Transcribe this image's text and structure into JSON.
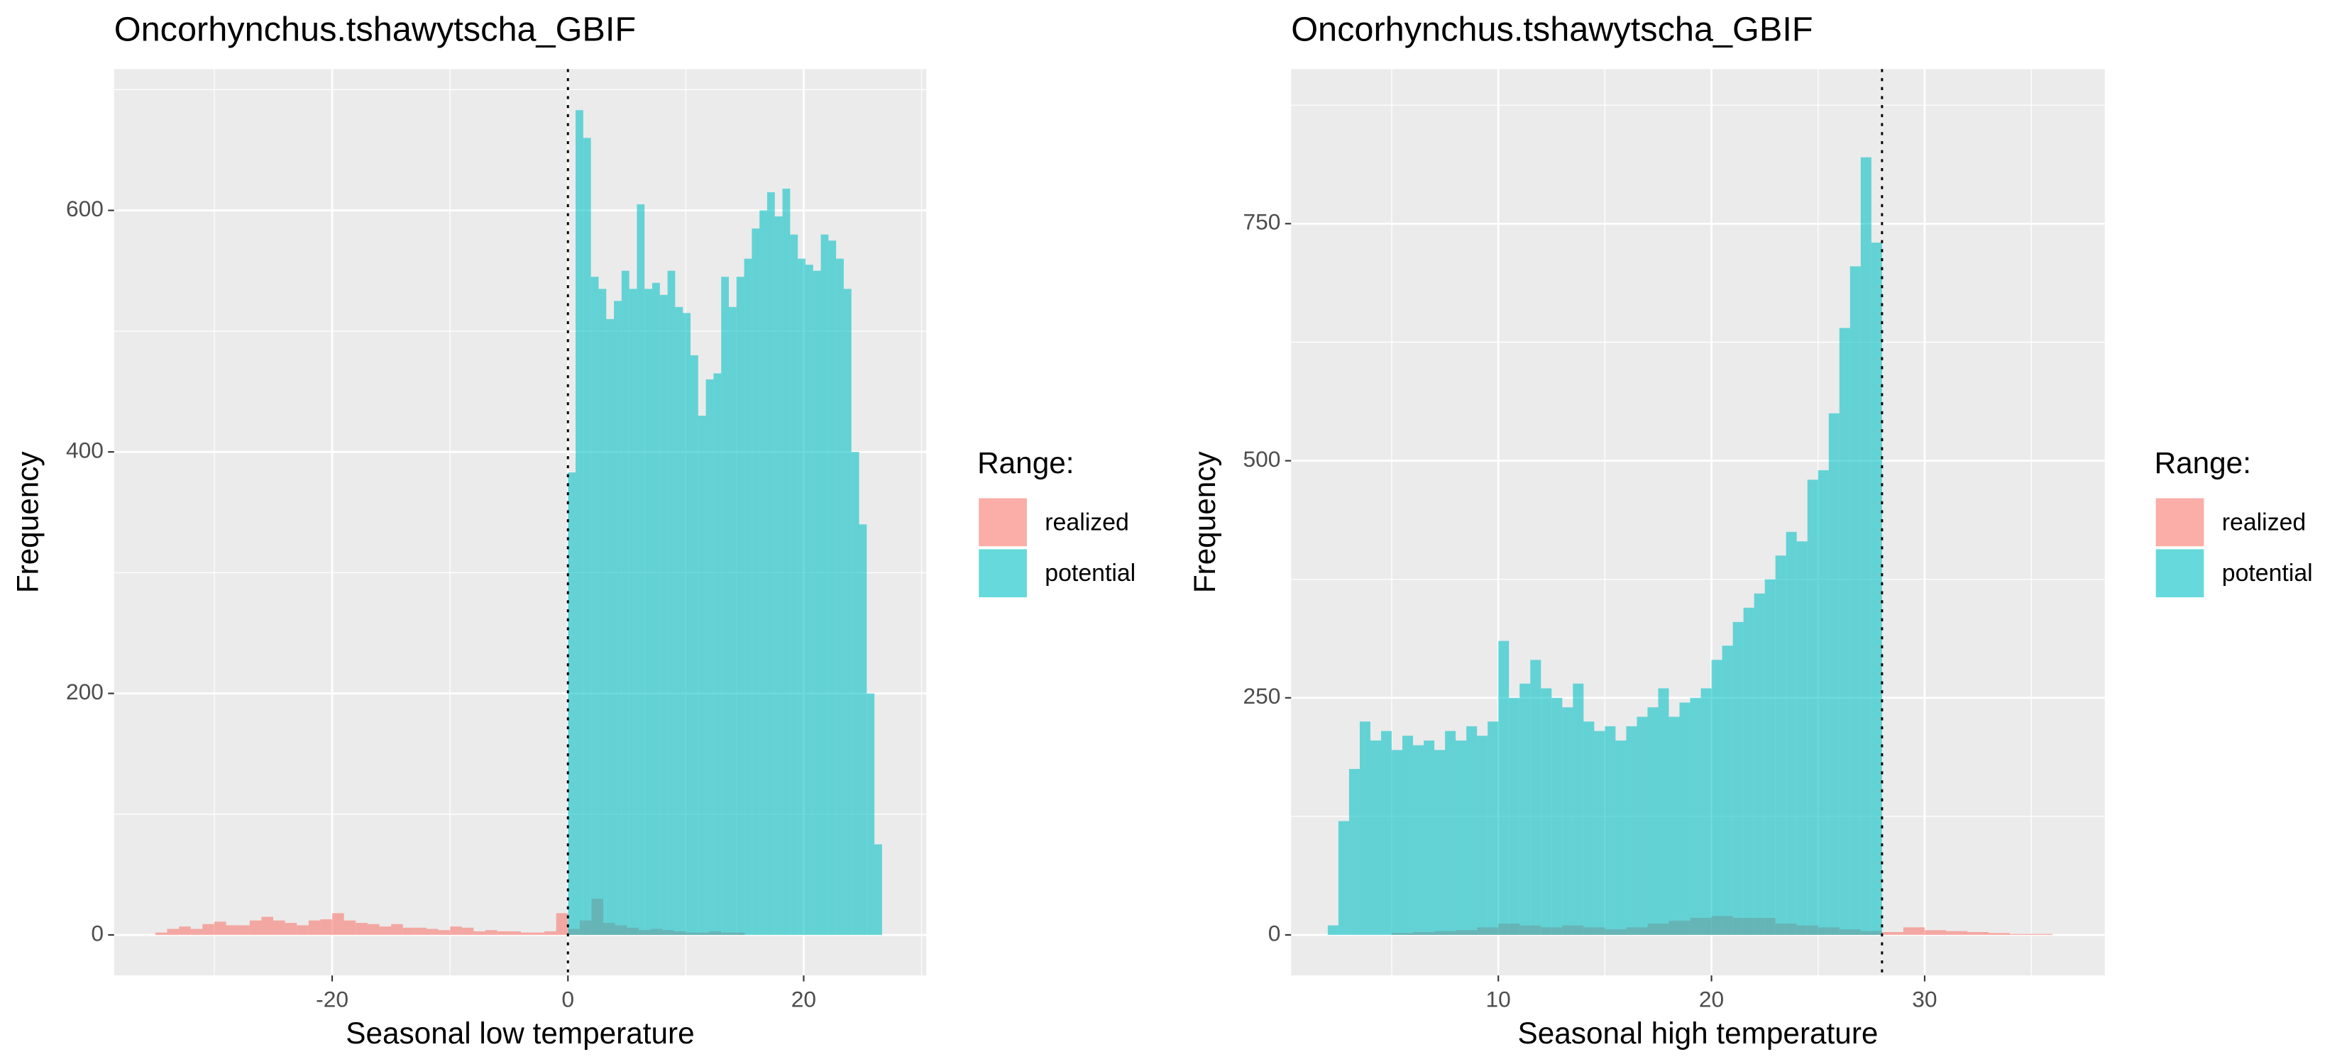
{
  "chart_data": [
    {
      "type": "histogram",
      "title": "Oncorhynchus.tshawytscha_GBIF",
      "x_label": "Seasonal low temperature",
      "y_label": "Frequency",
      "legend_title": "Range:",
      "series": [
        {
          "name": "realized",
          "color": "#F8766D",
          "bins": [
            -35,
            -34,
            -33,
            -32,
            -31,
            -30,
            -29,
            -28,
            -27,
            -26,
            -25,
            -24,
            -23,
            -22,
            -21,
            -20,
            -19,
            -18,
            -17,
            -16,
            -15,
            -14,
            -13,
            -12,
            -11,
            -10,
            -9,
            -8,
            -7,
            -6,
            -5,
            -4,
            -3,
            -2,
            -1,
            0,
            1,
            2,
            3,
            4,
            5,
            6,
            7,
            8,
            9,
            10,
            11,
            12,
            13,
            14,
            15
          ],
          "values": [
            2,
            5,
            7,
            5,
            9,
            11,
            8,
            8,
            12,
            15,
            12,
            10,
            8,
            12,
            13,
            18,
            12,
            10,
            9,
            7,
            9,
            6,
            6,
            5,
            4,
            7,
            6,
            3,
            4,
            3,
            3,
            2,
            2,
            3,
            18,
            5,
            12,
            30,
            10,
            8,
            6,
            4,
            5,
            4,
            3,
            2,
            2,
            3,
            2,
            2
          ]
        },
        {
          "name": "potential",
          "color": "#00BFC4",
          "bins": [
            0,
            0.65,
            1.3,
            1.95,
            2.6,
            3.25,
            3.9,
            4.55,
            5.2,
            5.85,
            6.5,
            7.15,
            7.8,
            8.45,
            9.1,
            9.75,
            10.4,
            11.05,
            11.7,
            12.35,
            13,
            13.65,
            14.3,
            14.95,
            15.6,
            16.25,
            16.9,
            17.55,
            18.2,
            18.85,
            19.5,
            20.15,
            20.8,
            21.45,
            22.1,
            22.75,
            23.4,
            24.05,
            24.7,
            25.35,
            26,
            26.65
          ],
          "values": [
            383,
            683,
            660,
            545,
            535,
            510,
            525,
            550,
            535,
            605,
            535,
            540,
            530,
            550,
            520,
            515,
            480,
            430,
            460,
            465,
            545,
            520,
            545,
            560,
            585,
            600,
            615,
            595,
            618,
            580,
            560,
            555,
            550,
            580,
            575,
            560,
            535,
            400,
            340,
            200,
            75
          ]
        }
      ],
      "xlim": [
        -38.5,
        30.4
      ],
      "ylim": [
        -33.5,
        717
      ],
      "xticks": [
        -20,
        0,
        20
      ],
      "yticks": [
        0,
        200,
        400,
        600
      ],
      "vline": 0,
      "grid": true
    },
    {
      "type": "histogram",
      "title": "Oncorhynchus.tshawytscha_GBIF",
      "x_label": "Seasonal high temperature",
      "y_label": "Frequency",
      "legend_title": "Range:",
      "series": [
        {
          "name": "realized",
          "color": "#F8766D",
          "bins": [
            5,
            6,
            7,
            8,
            9,
            10,
            11,
            12,
            13,
            14,
            15,
            16,
            17,
            18,
            19,
            20,
            21,
            22,
            23,
            24,
            25,
            26,
            27,
            28,
            29,
            30,
            31,
            32,
            33,
            34,
            35,
            36
          ],
          "values": [
            2,
            3,
            4,
            5,
            8,
            12,
            10,
            8,
            10,
            8,
            6,
            8,
            12,
            15,
            18,
            20,
            18,
            18,
            12,
            10,
            8,
            6,
            4,
            3,
            8,
            5,
            4,
            3,
            2,
            1,
            1
          ]
        },
        {
          "name": "potential",
          "color": "#00BFC4",
          "bins": [
            2,
            2.5,
            3,
            3.5,
            4,
            4.5,
            5,
            5.5,
            6,
            6.5,
            7,
            7.5,
            8,
            8.5,
            9,
            9.5,
            10,
            10.5,
            11,
            11.5,
            12,
            12.5,
            13,
            13.5,
            14,
            14.5,
            15,
            15.5,
            16,
            16.5,
            17,
            17.5,
            18,
            18.5,
            19,
            19.5,
            20,
            20.5,
            21,
            21.5,
            22,
            22.5,
            23,
            23.5,
            24,
            24.5,
            25,
            25.5,
            26,
            26.5,
            27,
            27.5,
            28
          ],
          "values": [
            10,
            120,
            175,
            225,
            205,
            215,
            195,
            210,
            200,
            205,
            195,
            215,
            205,
            220,
            210,
            225,
            310,
            250,
            265,
            290,
            260,
            250,
            240,
            265,
            225,
            215,
            220,
            205,
            220,
            230,
            240,
            260,
            230,
            245,
            250,
            260,
            290,
            305,
            330,
            345,
            360,
            375,
            400,
            425,
            415,
            480,
            490,
            550,
            640,
            705,
            820,
            730
          ]
        }
      ],
      "xlim": [
        0.28,
        38.45
      ],
      "ylim": [
        -42.7,
        913
      ],
      "xticks": [
        10,
        20,
        30
      ],
      "yticks": [
        0,
        250,
        500,
        750
      ],
      "vline": 28,
      "grid": true
    }
  ]
}
